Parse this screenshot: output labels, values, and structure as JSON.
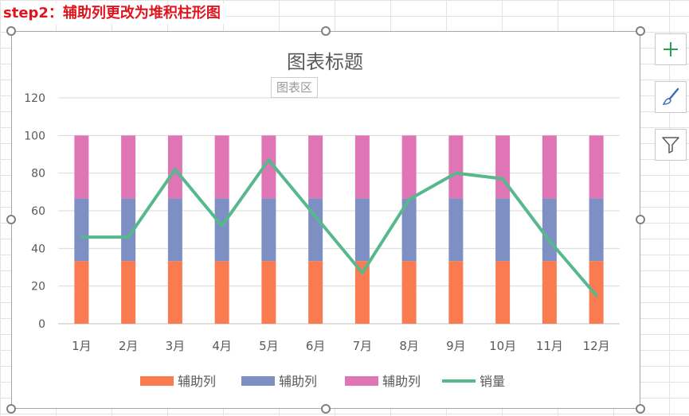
{
  "step_title": "step2：辅助列更改为堆积柱形图",
  "chart_area_tooltip": "图表区",
  "side_buttons": {
    "elements": "plus-icon",
    "styles": "brush-icon",
    "filters": "filter-icon"
  },
  "colors": {
    "series1": "#fb7b51",
    "series2": "#7e8fc3",
    "series3": "#e075b6",
    "line": "#58b88d",
    "gridline": "#d9d9d9",
    "axis_text": "#595959",
    "title_text": "#595959"
  },
  "chart_data": {
    "type": "bar",
    "stacked": true,
    "title": "图表标题",
    "categories": [
      "1月",
      "2月",
      "3月",
      "4月",
      "5月",
      "6月",
      "7月",
      "8月",
      "9月",
      "10月",
      "11月",
      "12月"
    ],
    "series": [
      {
        "name": "辅助列",
        "type": "bar",
        "values": [
          33.3,
          33.3,
          33.3,
          33.3,
          33.3,
          33.3,
          33.3,
          33.3,
          33.3,
          33.3,
          33.3,
          33.3
        ]
      },
      {
        "name": "辅助列",
        "type": "bar",
        "values": [
          33.3,
          33.3,
          33.3,
          33.3,
          33.3,
          33.3,
          33.3,
          33.3,
          33.3,
          33.3,
          33.3,
          33.3
        ]
      },
      {
        "name": "辅助列",
        "type": "bar",
        "values": [
          33.4,
          33.4,
          33.4,
          33.4,
          33.4,
          33.4,
          33.4,
          33.4,
          33.4,
          33.4,
          33.4,
          33.4
        ]
      },
      {
        "name": "销量",
        "type": "line",
        "values": [
          46,
          46,
          82,
          52,
          87,
          57,
          27,
          66,
          80,
          77,
          44,
          15
        ]
      }
    ],
    "y_ticks": [
      0,
      20,
      40,
      60,
      80,
      100,
      120
    ],
    "ylim": [
      0,
      120
    ],
    "grid": true,
    "legend_position": "bottom"
  }
}
